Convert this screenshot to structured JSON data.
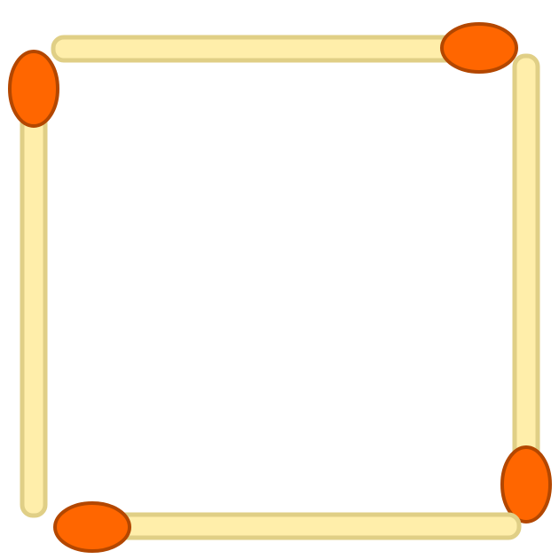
{
  "colors": {
    "background": "#ffffff",
    "stick_fill": "#ffeeaa",
    "stick_outline": "#e0cf86",
    "head_fill": "#ff6600",
    "head_outline": "#b34700"
  },
  "matches": [
    {
      "name": "top-match"
    },
    {
      "name": "right-match"
    },
    {
      "name": "bottom-match"
    },
    {
      "name": "left-match"
    }
  ]
}
